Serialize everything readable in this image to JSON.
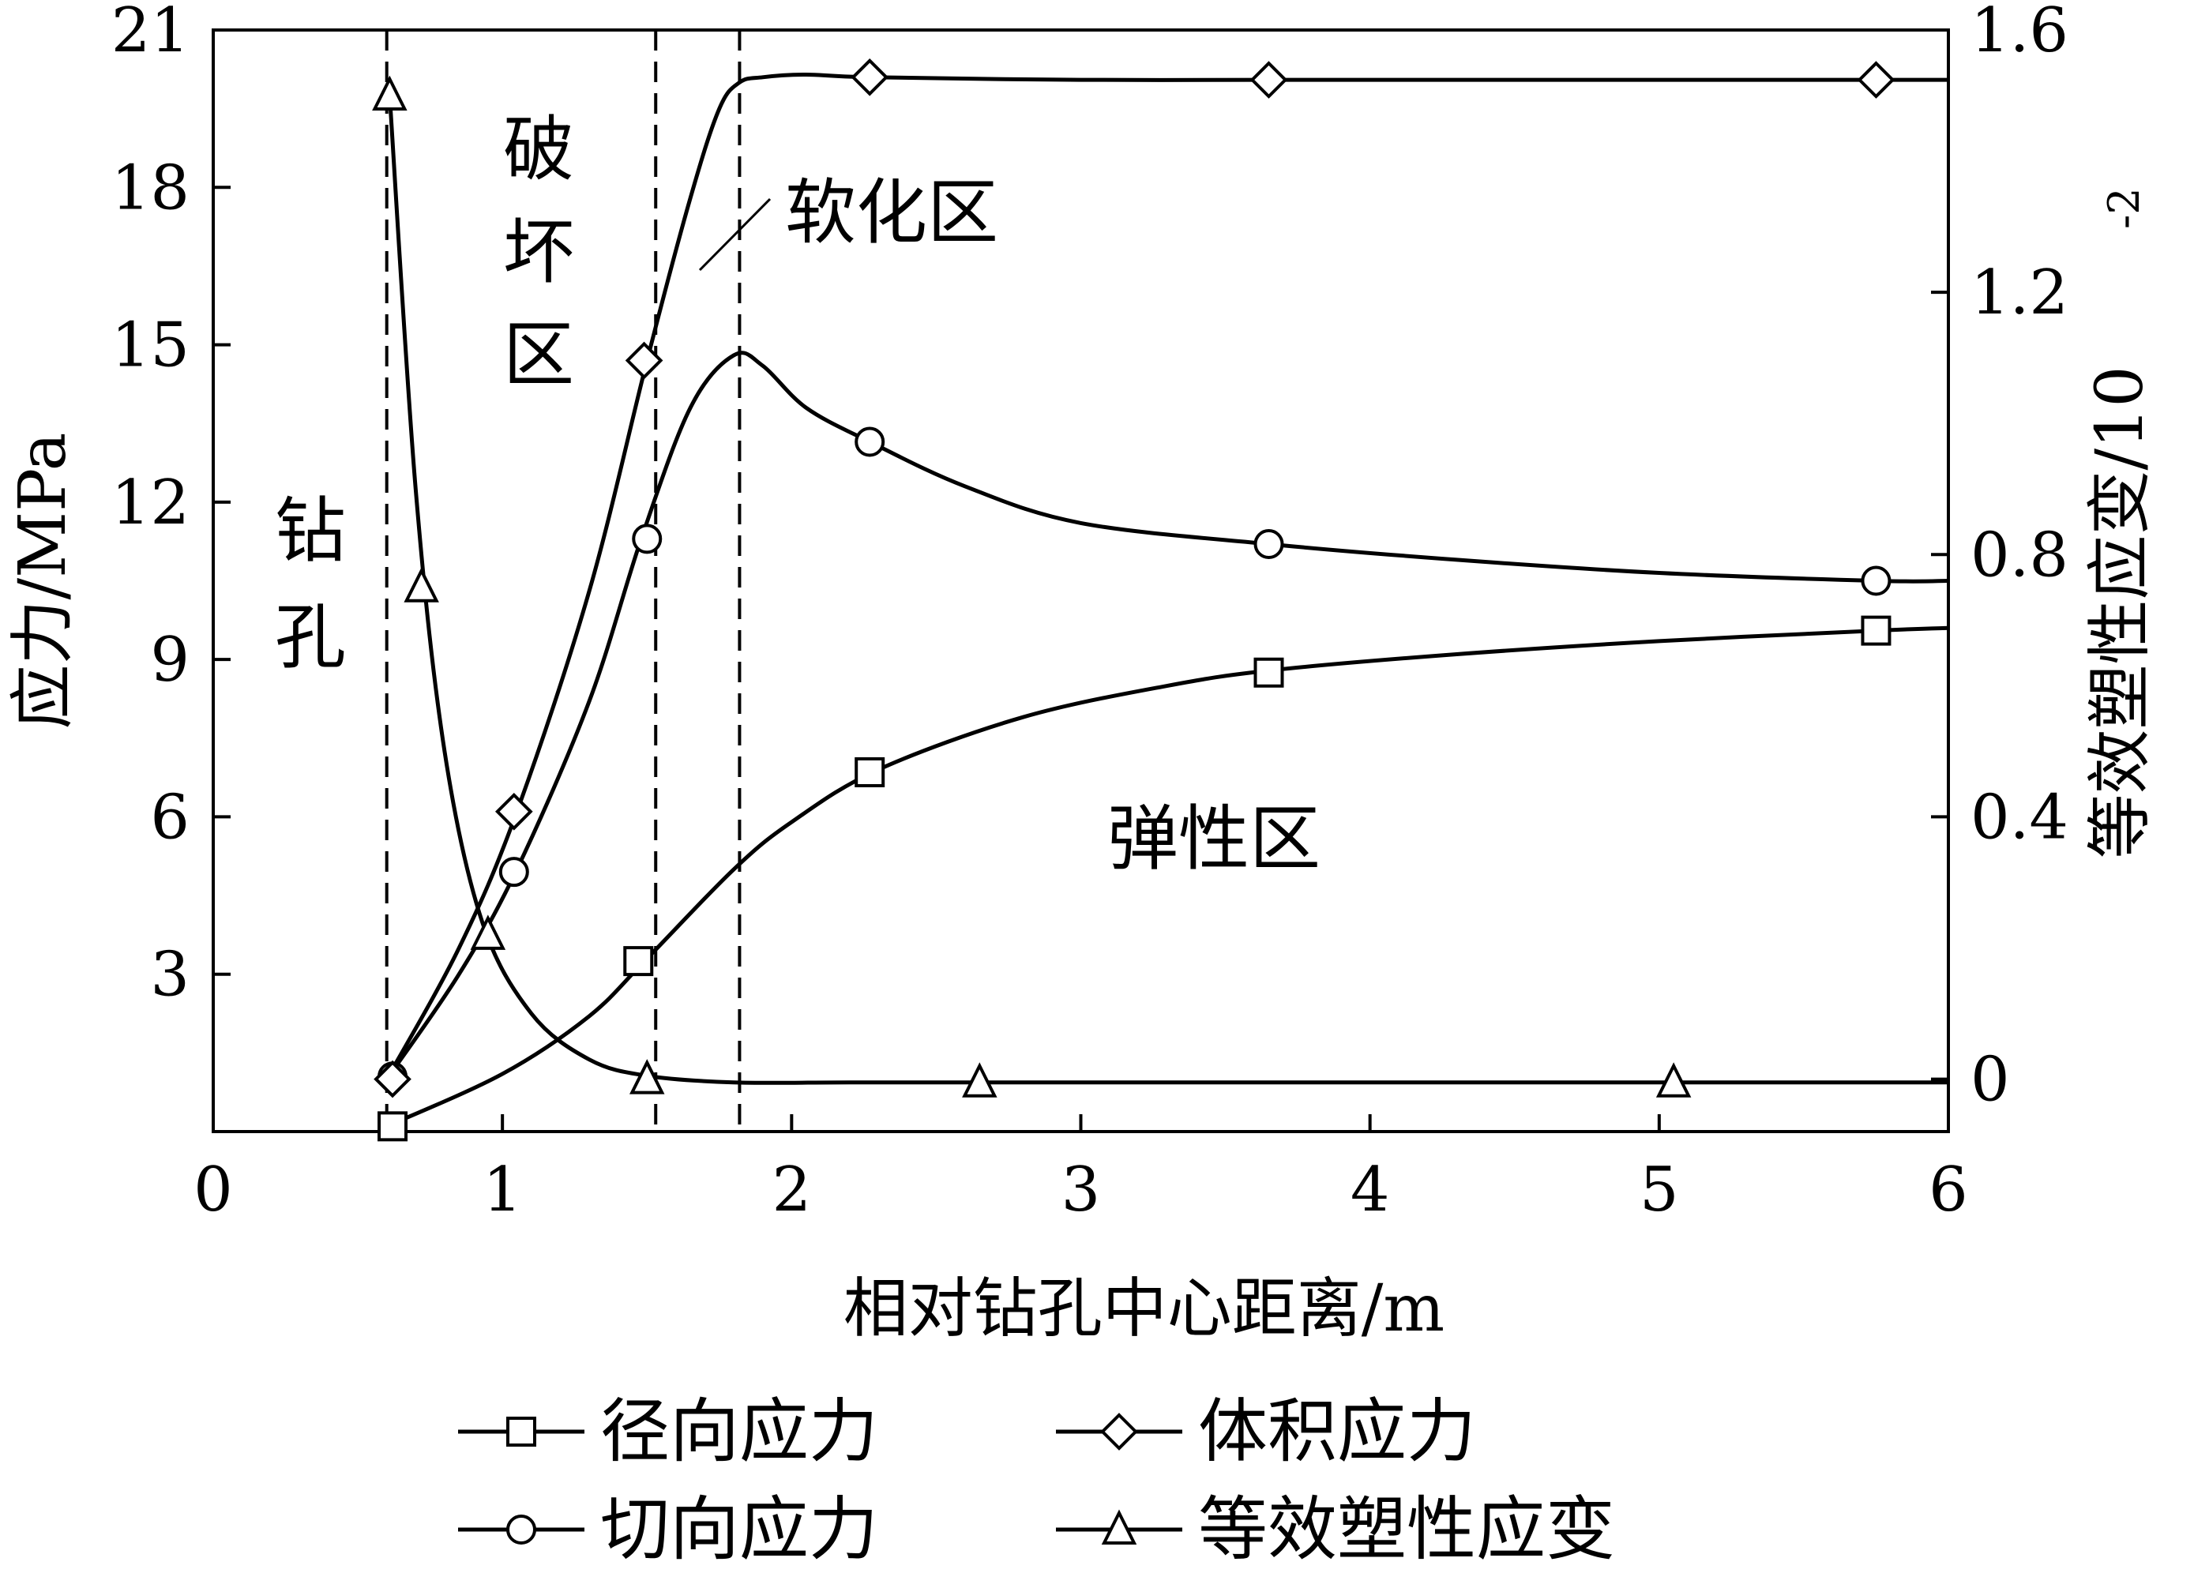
{
  "chart_data": {
    "type": "line",
    "xlabel": "相对钻孔中心距离/m",
    "ylabel_left": "应力/MPa",
    "ylabel_right": "等效塑性应变/10",
    "ylabel_right_exp": "-2",
    "xlim": [
      0,
      6
    ],
    "ylim_left": [
      0,
      21
    ],
    "ylim_right": [
      -0.08,
      1.6
    ],
    "x_ticks": [
      "0",
      "1",
      "2",
      "3",
      "4",
      "5",
      "6"
    ],
    "y_left_ticks": [
      "3",
      "6",
      "9",
      "12",
      "15",
      "18",
      "21"
    ],
    "y_right_ticks": [
      "0",
      "0.4",
      "0.8",
      "1.2",
      "1.6"
    ],
    "grid": false,
    "legend_position": "bottom",
    "boundaries_x": [
      0.6,
      1.53,
      1.82
    ],
    "annotations": {
      "borehole": [
        "钻",
        "孔"
      ],
      "failure_zone": [
        "破",
        "坏",
        "区"
      ],
      "softening_zone": "软化区",
      "elastic_zone": "弹性区"
    },
    "series": [
      {
        "name": "径向应力",
        "marker": "square",
        "axis": "left",
        "x": [
          0.6,
          1.0,
          1.3,
          1.5,
          1.8,
          2.0,
          2.3,
          2.8,
          3.3,
          3.67,
          4.3,
          5.0,
          5.75,
          6.0
        ],
        "y": [
          0.1,
          1.1,
          2.2,
          3.3,
          5.0,
          5.9,
          6.9,
          7.9,
          8.5,
          8.8,
          9.1,
          9.35,
          9.55,
          9.6
        ],
        "marker_x": [
          0.62,
          1.47,
          2.27,
          3.65,
          5.75
        ],
        "marker_y": [
          0.1,
          3.25,
          6.85,
          8.75,
          9.55
        ]
      },
      {
        "name": "切向应力",
        "marker": "circle",
        "axis": "left",
        "x": [
          0.6,
          0.85,
          1.05,
          1.3,
          1.48,
          1.65,
          1.8,
          1.9,
          2.05,
          2.27,
          2.6,
          3.0,
          3.65,
          4.3,
          5.0,
          5.75,
          6.0
        ],
        "y": [
          1.0,
          3.0,
          5.0,
          8.2,
          11.3,
          13.8,
          14.8,
          14.6,
          13.8,
          13.15,
          12.3,
          11.6,
          11.2,
          10.9,
          10.65,
          10.5,
          10.5
        ],
        "marker_x": [
          0.62,
          1.04,
          1.5,
          2.27,
          3.65,
          5.75
        ],
        "marker_y": [
          1.05,
          4.95,
          11.3,
          13.15,
          11.2,
          10.5
        ]
      },
      {
        "name": "体积应力",
        "marker": "diamond",
        "axis": "left",
        "x": [
          0.6,
          0.85,
          1.05,
          1.3,
          1.5,
          1.65,
          1.75,
          1.82,
          1.9,
          2.05,
          2.27,
          3.0,
          3.65,
          4.5,
          5.75,
          6.0
        ],
        "y": [
          1.0,
          3.5,
          6.1,
          10.3,
          14.7,
          17.8,
          19.5,
          20.0,
          20.1,
          20.15,
          20.1,
          20.05,
          20.05,
          20.05,
          20.05,
          20.05
        ],
        "marker_x": [
          0.62,
          1.04,
          1.49,
          2.27,
          3.65,
          5.75
        ],
        "marker_y": [
          1.0,
          6.1,
          14.7,
          20.1,
          20.05,
          20.05
        ]
      },
      {
        "name": "等效塑性应变",
        "marker": "triangle",
        "axis": "right",
        "x": [
          0.61,
          0.7,
          0.8,
          0.93,
          1.1,
          1.3,
          1.5,
          1.8,
          2.2,
          2.65,
          4.0,
          5.05,
          6.0
        ],
        "y": [
          1.5,
          0.9,
          0.5,
          0.24,
          0.1,
          0.03,
          0.005,
          -0.005,
          -0.005,
          -0.005,
          -0.005,
          -0.005,
          -0.005
        ],
        "marker_x": [
          0.61,
          0.72,
          0.95,
          1.5,
          2.65,
          5.05
        ],
        "marker_y": [
          1.5,
          0.75,
          0.22,
          0.0,
          -0.005,
          -0.005
        ]
      }
    ]
  }
}
